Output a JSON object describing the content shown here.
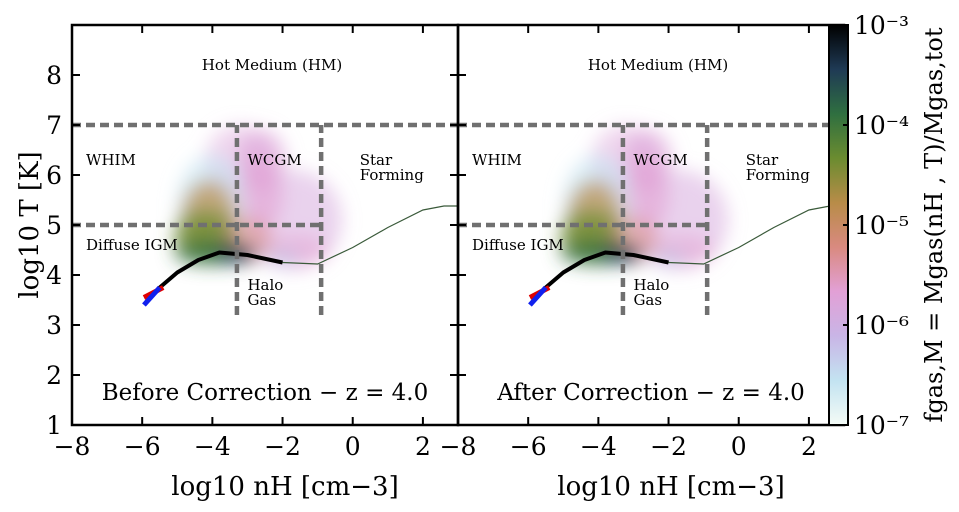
{
  "chart_data": {
    "type": "heatmap",
    "description_kind": "phase-diagram",
    "shared": {
      "xlabel": "log₁₀ n_H [cm⁻³]",
      "ylabel": "log₁₀ T [K]",
      "xlim": [
        -8,
        3
      ],
      "ylim": [
        1,
        9
      ],
      "xticks": [
        -8,
        -6,
        -4,
        -2,
        0,
        2
      ],
      "xtick_labels": [
        "−8",
        "−6",
        "−4",
        "−2",
        "0",
        "2"
      ],
      "yticks": [
        1,
        2,
        3,
        4,
        5,
        6,
        7,
        8
      ],
      "ytick_labels": [
        "1",
        "2",
        "3",
        "4",
        "5",
        "6",
        "7",
        "8"
      ],
      "ylabel_display": "log10 T [K]",
      "xlabel_display": "log10 nH [cm−3]"
    },
    "panels": [
      {
        "id": "before",
        "caption": "Before Correction − z = 4.0"
      },
      {
        "id": "after",
        "caption": "After Correction − z = 4.0"
      }
    ],
    "regions": [
      {
        "label": "Hot Medium (HM)",
        "x": -4.3,
        "y": 8.1,
        "anchor": "start"
      },
      {
        "label": "WHIM",
        "x": -7.6,
        "y": 6.2,
        "anchor": "start"
      },
      {
        "label": "WCGM",
        "x": -3.0,
        "y": 6.2,
        "anchor": "start"
      },
      {
        "label": "Star",
        "x": 0.2,
        "y": 6.2,
        "anchor": "start"
      },
      {
        "label": "Forming",
        "x": 0.2,
        "y": 5.9,
        "anchor": "start"
      },
      {
        "label": "Diffuse IGM",
        "x": -7.6,
        "y": 4.5,
        "anchor": "start"
      },
      {
        "label": "Halo",
        "x": -3.0,
        "y": 3.7,
        "anchor": "start"
      },
      {
        "label": "Gas",
        "x": -3.0,
        "y": 3.4,
        "anchor": "start"
      }
    ],
    "boundaries": [
      {
        "kind": "h",
        "y": 7,
        "x_from": -8,
        "x_to": 3
      },
      {
        "kind": "h",
        "y": 5,
        "x_from": -8,
        "x_to": -0.9
      },
      {
        "kind": "v",
        "x": -3.3,
        "y_from": 3.2,
        "y_to": 7
      },
      {
        "kind": "v",
        "x": -0.9,
        "y_from": 3.2,
        "y_to": 7
      }
    ],
    "eos_curve": [
      [
        -2.0,
        4.25
      ],
      [
        -1.0,
        4.22
      ],
      [
        0.0,
        4.55
      ],
      [
        1.0,
        4.95
      ],
      [
        2.0,
        5.3
      ],
      [
        2.6,
        5.38
      ],
      [
        3.0,
        5.38
      ]
    ],
    "cool_track": [
      [
        -5.9,
        3.45
      ],
      [
        -5.5,
        3.75
      ],
      [
        -5.0,
        4.05
      ],
      [
        -4.4,
        4.3
      ],
      [
        -3.8,
        4.45
      ],
      [
        -3.0,
        4.4
      ],
      [
        -2.0,
        4.25
      ]
    ],
    "markers": [
      {
        "color": "#e00000",
        "from": [
          -5.95,
          3.55
        ],
        "to": [
          -5.4,
          3.75
        ]
      },
      {
        "color": "#1020ee",
        "from": [
          -5.95,
          3.4
        ],
        "to": [
          -5.5,
          3.75
        ]
      }
    ],
    "colorbar": {
      "label": "f_gas,M = M_gas(n_H, T) / M_gas,tot",
      "label_display": "fgas,M = Mgas(nH , T)/Mgas,tot",
      "scale": "log",
      "range": [
        1e-07,
        0.001
      ],
      "ticks": [
        "10⁻³",
        "10⁻⁴",
        "10⁻⁵",
        "10⁻⁶",
        "10⁻⁷"
      ],
      "colors": [
        "#f4fbf6",
        "#c3e3f1",
        "#c9b5e6",
        "#e2a0d6",
        "#d98a80",
        "#b88c48",
        "#6b8c30",
        "#2f6f40",
        "#1f3a55",
        "#000000"
      ]
    }
  }
}
